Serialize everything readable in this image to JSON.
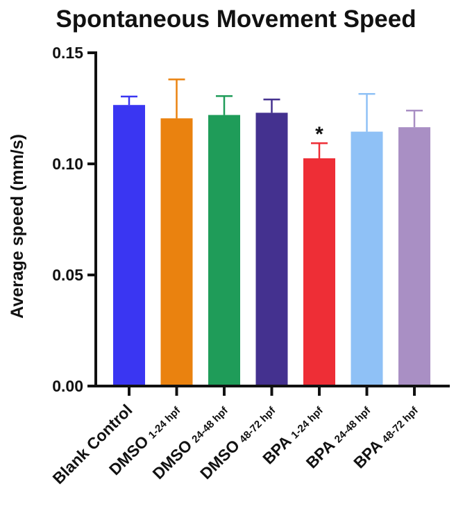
{
  "chart_data": {
    "type": "bar",
    "title": "Spontaneous Movement Speed",
    "xlabel": "",
    "ylabel": "Average speed (mm/s)",
    "ylim": [
      0,
      0.15
    ],
    "yticks": [
      "0.00",
      "0.05",
      "0.10",
      "0.15"
    ],
    "ytick_values": [
      0,
      0.05,
      0.1,
      0.15
    ],
    "categories": [
      {
        "main": "Blank Control",
        "sub": ""
      },
      {
        "main": "DMSO",
        "sub": "1-24 hpf"
      },
      {
        "main": "DMSO",
        "sub": "24-48 hpf"
      },
      {
        "main": "DMSO",
        "sub": "48-72 hpf"
      },
      {
        "main": "BPA",
        "sub": "1-24 hpf"
      },
      {
        "main": "BPA",
        "sub": "24-48 hpf"
      },
      {
        "main": "BPA",
        "sub": "48-72 hpf"
      }
    ],
    "values": [
      0.1265,
      0.1205,
      0.122,
      0.123,
      0.1025,
      0.1145,
      0.1165
    ],
    "errors": [
      0.0038,
      0.0175,
      0.0085,
      0.006,
      0.0068,
      0.017,
      0.0075
    ],
    "colors": [
      "#3a36f2",
      "#ea820f",
      "#1f9c59",
      "#44318f",
      "#ee2e36",
      "#8fc1f6",
      "#a98fc4"
    ],
    "annotations": [
      {
        "index": 4,
        "text": "*"
      }
    ]
  }
}
